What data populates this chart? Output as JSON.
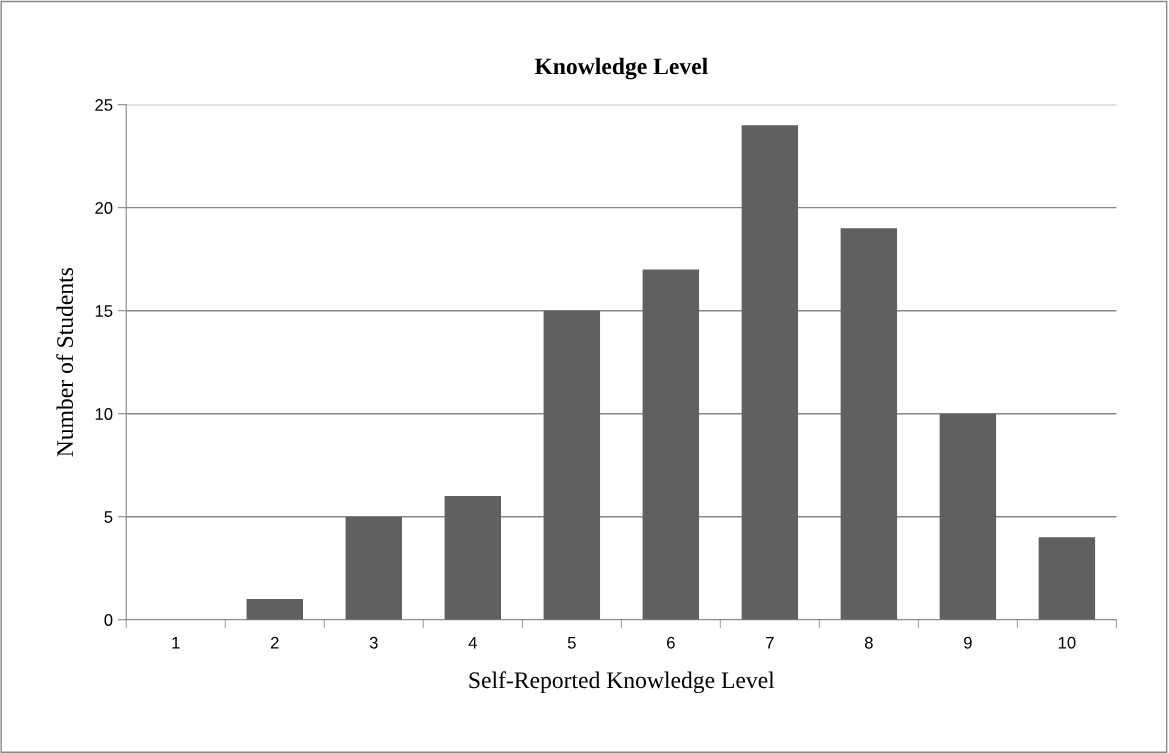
{
  "chart_data": {
    "type": "bar",
    "title": "Knowledge Level",
    "xlabel": "Self-Reported Knowledge Level",
    "ylabel": "Number of Students",
    "categories": [
      "1",
      "2",
      "3",
      "4",
      "5",
      "6",
      "7",
      "8",
      "9",
      "10"
    ],
    "values": [
      0,
      1,
      5,
      6,
      15,
      17,
      24,
      19,
      10,
      4
    ],
    "color": "#606060",
    "ylim": [
      0,
      25
    ],
    "yticks": [
      0,
      5,
      10,
      15,
      20,
      25
    ],
    "grid": "y",
    "legend": false
  }
}
